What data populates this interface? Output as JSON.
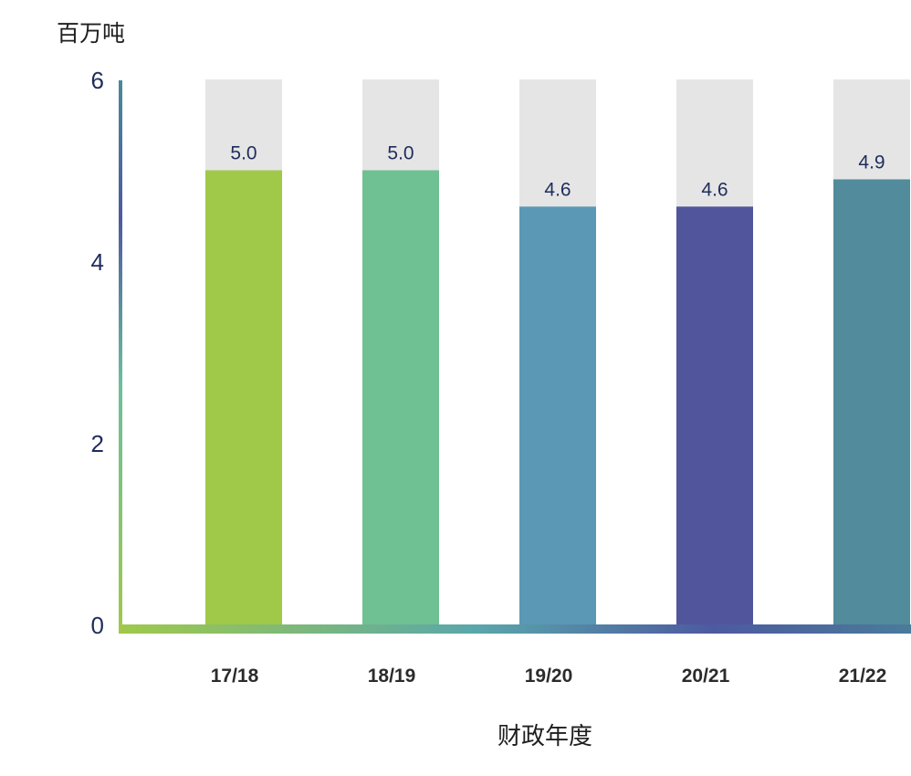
{
  "chart_data": {
    "type": "bar",
    "ylabel": "百万吨",
    "xlabel": "财政年度",
    "ylim": [
      0,
      6
    ],
    "yticks": [
      "0",
      "2",
      "4",
      "6"
    ],
    "categories": [
      "17/18",
      "18/19",
      "19/20",
      "20/21",
      "21/22"
    ],
    "values": [
      5.0,
      5.0,
      4.6,
      4.6,
      4.9
    ],
    "data_labels": [
      "5.0",
      "5.0",
      "4.6",
      "4.6",
      "4.9"
    ],
    "bar_colors": [
      "#a0c94a",
      "#6fc093",
      "#5b98b5",
      "#51559b",
      "#528b9b"
    ],
    "background_bar_color": "#e5e5e5",
    "grid": false
  }
}
